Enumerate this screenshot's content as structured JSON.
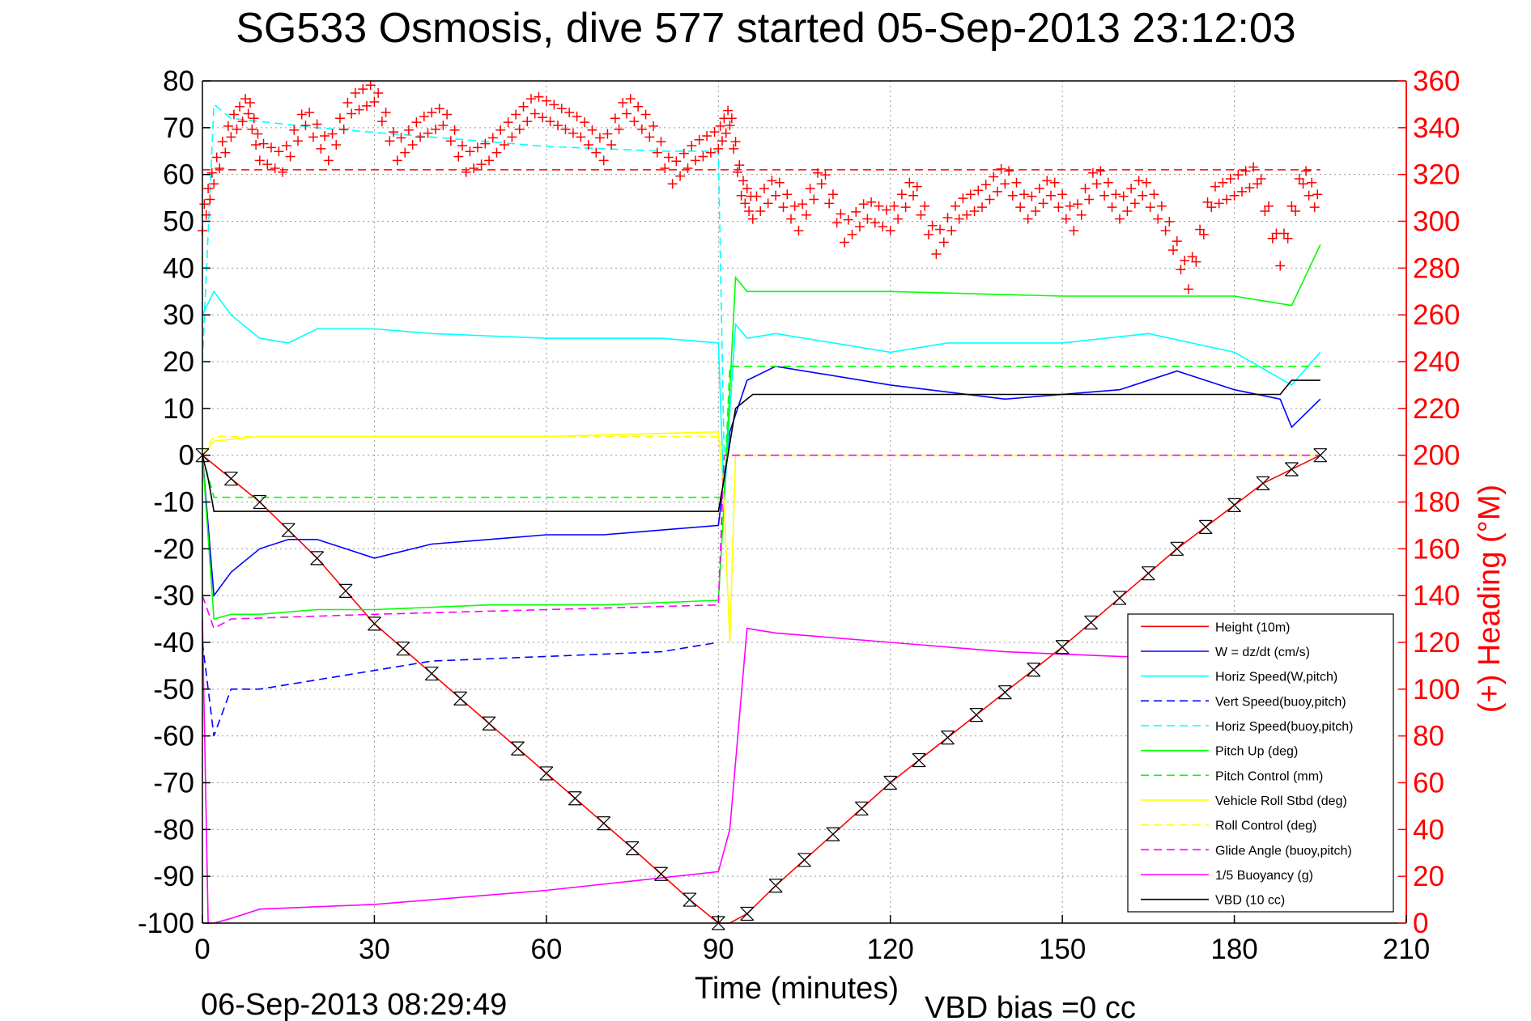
{
  "chart_data": {
    "type": "line",
    "title": "SG533 Osmosis, dive 577 started 05-Sep-2013 23:12:03",
    "xlabel": "Time (minutes)",
    "ylabel_right": "(+) Heading (°M)",
    "footer_left": "06-Sep-2013 08:29:49",
    "footer_right": "VBD bias =0 cc",
    "xlim": [
      0,
      210
    ],
    "ylim_left": [
      -100,
      80
    ],
    "ylim_right": [
      0,
      360
    ],
    "x_ticks": [
      "0",
      "30",
      "60",
      "90",
      "120",
      "150",
      "180",
      "210"
    ],
    "y_ticks_left": [
      "80",
      "70",
      "60",
      "50",
      "40",
      "30",
      "20",
      "10",
      "0",
      "-10",
      "-20",
      "-30",
      "-40",
      "-50",
      "-60",
      "-70",
      "-80",
      "-90",
      "-100"
    ],
    "y_ticks_right": [
      "360",
      "340",
      "320",
      "300",
      "280",
      "260",
      "240",
      "220",
      "200",
      "180",
      "160",
      "140",
      "120",
      "100",
      "80",
      "60",
      "40",
      "20",
      "0"
    ],
    "grid": true,
    "legend_position": "bottom-right",
    "series": [
      {
        "name": "Height (10m)",
        "color": "#ff0000",
        "style": "solid",
        "x": [
          0,
          10,
          20,
          30,
          45,
          60,
          75,
          85,
          90,
          92,
          95,
          100,
          120,
          150,
          170,
          185,
          195
        ],
        "y": [
          0,
          -10,
          -22,
          -36,
          -52,
          -68,
          -84,
          -95,
          -100,
          -100,
          -98,
          -92,
          -70,
          -41,
          -20,
          -6,
          0
        ]
      },
      {
        "name": "W = dz/dt (cm/s)",
        "color": "#0000ff",
        "style": "solid",
        "x": [
          0,
          2,
          5,
          10,
          15,
          20,
          25,
          30,
          40,
          50,
          60,
          70,
          80,
          90,
          91,
          92,
          95,
          100,
          120,
          140,
          160,
          170,
          180,
          188,
          190,
          195
        ],
        "y": [
          0,
          -30,
          -25,
          -20,
          -18,
          -18,
          -20,
          -22,
          -19,
          -18,
          -17,
          -17,
          -16,
          -15,
          -5,
          5,
          16,
          19,
          15,
          12,
          14,
          18,
          14,
          12,
          6,
          12
        ]
      },
      {
        "name": "Horiz Speed(W,pitch)",
        "color": "#00ffff",
        "style": "solid",
        "x": [
          0,
          2,
          5,
          10,
          15,
          20,
          30,
          40,
          60,
          80,
          90,
          91,
          93,
          95,
          100,
          120,
          130,
          150,
          165,
          180,
          190,
          195
        ],
        "y": [
          30,
          35,
          30,
          25,
          24,
          27,
          27,
          26,
          25,
          25,
          24,
          -10,
          28,
          25,
          26,
          22,
          24,
          24,
          26,
          22,
          15,
          22
        ]
      },
      {
        "name": "Vert Speed(buoy,pitch)",
        "color": "#0000ff",
        "style": "dashed",
        "x": [
          0,
          2,
          5,
          10,
          20,
          30,
          40,
          60,
          80,
          90
        ],
        "y": [
          -40,
          -60,
          -50,
          -50,
          -48,
          -46,
          -44,
          -43,
          -42,
          -40
        ]
      },
      {
        "name": "Horiz Speed(buoy,pitch)",
        "color": "#00ffff",
        "style": "dashed",
        "x": [
          0,
          2,
          5,
          20,
          40,
          60,
          80,
          90,
          91
        ],
        "y": [
          20,
          75,
          72,
          70,
          68,
          66,
          65,
          65,
          0
        ]
      },
      {
        "name": "Pitch Up (deg)",
        "color": "#00ff00",
        "style": "solid",
        "x": [
          0,
          2,
          5,
          10,
          20,
          30,
          50,
          70,
          90,
          91,
          93,
          95,
          100,
          120,
          150,
          180,
          190,
          195
        ],
        "y": [
          0,
          -35,
          -34,
          -34,
          -33,
          -33,
          -32,
          -32,
          -31,
          -10,
          38,
          35,
          35,
          35,
          34,
          34,
          32,
          45
        ]
      },
      {
        "name": "Pitch Control (mm)",
        "color": "#00ff00",
        "style": "dashed",
        "x": [
          0,
          2,
          90,
          91,
          92,
          195
        ],
        "y": [
          0,
          -9,
          -9,
          -9,
          19,
          19
        ]
      },
      {
        "name": "Vehicle Roll Stbd (deg)",
        "color": "#ffff00",
        "style": "solid",
        "x": [
          0,
          2,
          10,
          30,
          60,
          90,
          91,
          92,
          93,
          100,
          120,
          150,
          180,
          195
        ],
        "y": [
          0,
          3,
          4,
          4,
          4,
          5,
          -10,
          -40,
          0,
          0,
          0,
          0,
          0,
          0
        ]
      },
      {
        "name": "Roll Control (deg)",
        "color": "#ffff00",
        "style": "dashed",
        "x": [
          0,
          2,
          90,
          91,
          92,
          195
        ],
        "y": [
          0,
          4,
          4,
          0,
          0,
          0
        ]
      },
      {
        "name": "Glide Angle (buoy,pitch)",
        "color": "#ff00ff",
        "style": "dashed",
        "x": [
          0,
          2,
          5,
          30,
          60,
          90,
          91,
          93,
          195
        ],
        "y": [
          -30,
          -37,
          -35,
          -34,
          -33,
          -32,
          0,
          0,
          0
        ]
      },
      {
        "name": "1/5 Buoyancy (g)",
        "color": "#ff00ff",
        "style": "solid",
        "x": [
          0,
          1,
          2,
          5,
          10,
          30,
          60,
          90,
          92,
          95,
          100,
          120,
          140,
          160,
          195
        ],
        "y": [
          -35,
          -100,
          -100,
          -99,
          -97,
          -96,
          -93,
          -89,
          -80,
          -37,
          -38,
          -40,
          -42,
          -43,
          -44
        ]
      },
      {
        "name": "VBD (10 cc)",
        "color": "#000000",
        "style": "solid",
        "x": [
          0,
          1,
          2,
          90,
          91,
          93,
          95,
          96,
          100,
          150,
          188,
          190,
          195
        ],
        "y": [
          0,
          -5,
          -12,
          -12,
          -5,
          10,
          12,
          13,
          13,
          13,
          13,
          16,
          16
        ]
      }
    ],
    "heading_series": {
      "color": "#ff0000",
      "marker": "+",
      "axis": "right",
      "x": [
        0,
        2,
        5,
        8,
        10,
        14,
        18,
        22,
        26,
        30,
        34,
        38,
        42,
        46,
        50,
        54,
        58,
        62,
        66,
        70,
        74,
        78,
        82,
        86,
        90,
        92,
        94,
        96,
        100,
        104,
        108,
        112,
        116,
        120,
        124,
        128,
        132,
        136,
        140,
        144,
        148,
        152,
        156,
        160,
        164,
        168,
        172,
        176,
        180,
        184,
        188,
        192,
        195
      ],
      "y": [
        300,
        320,
        340,
        350,
        330,
        325,
        345,
        330,
        350,
        355,
        330,
        340,
        345,
        325,
        330,
        340,
        350,
        345,
        340,
        330,
        350,
        340,
        320,
        330,
        335,
        345,
        315,
        305,
        315,
        300,
        320,
        295,
        305,
        300,
        315,
        290,
        305,
        310,
        320,
        305,
        315,
        300,
        320,
        305,
        315,
        300,
        275,
        310,
        315,
        320,
        285,
        320,
        305
      ],
      "reference_line": 322
    }
  }
}
